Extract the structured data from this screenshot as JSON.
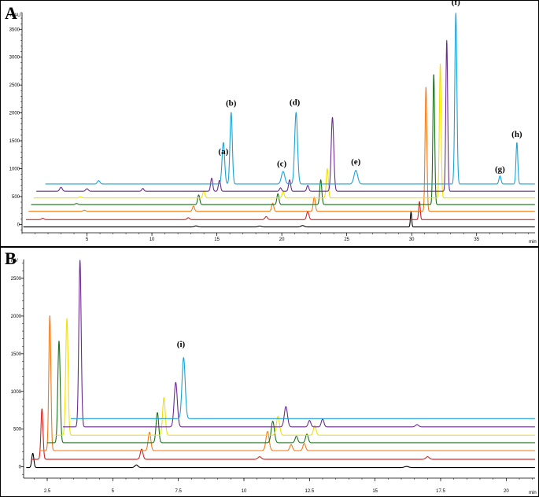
{
  "chart_data": [
    {
      "type": "line",
      "panel_label": "A",
      "y_unit": "mAU",
      "x_unit": "min",
      "xlim": [
        0,
        39.5
      ],
      "ylim": [
        -150,
        3800
      ],
      "x_ticks": [
        5,
        10,
        15,
        20,
        25,
        30,
        35
      ],
      "x_tick_labels": [
        "5",
        "10",
        "15",
        "20",
        "25",
        "30",
        "35"
      ],
      "y_ticks": [
        0,
        500,
        1000,
        1500,
        2000,
        2500,
        3000,
        3500
      ],
      "y_tick_labels": [
        "0",
        "500",
        "1000",
        "1500",
        "2000",
        "2500",
        "3000",
        "3500"
      ],
      "grid": false,
      "series": [
        {
          "color": "#000000",
          "x_start": 0.1,
          "baseline": -45,
          "peaks": [
            [
              13.4,
              18,
              0.12
            ],
            [
              18.3,
              15,
              0.12
            ],
            [
              21.6,
              25,
              0.12
            ],
            [
              29.95,
              270,
              0.05
            ]
          ]
        },
        {
          "color": "#d42020",
          "x_start": 0.3,
          "baseline": 85,
          "peaks": [
            [
              1.6,
              25,
              0.1
            ],
            [
              12.8,
              35,
              0.1
            ],
            [
              18.8,
              55,
              0.1
            ],
            [
              22.0,
              145,
              0.09
            ],
            [
              30.6,
              325,
              0.06
            ]
          ]
        },
        {
          "color": "#f07a1a",
          "x_start": 0.5,
          "baseline": 235,
          "peaks": [
            [
              4.8,
              20,
              0.1
            ],
            [
              13.2,
              95,
              0.08
            ],
            [
              19.3,
              145,
              0.08
            ],
            [
              22.5,
              255,
              0.08
            ],
            [
              31.1,
              2230,
              0.07
            ]
          ]
        },
        {
          "color": "#1c6f1c",
          "x_start": 0.7,
          "baseline": 355,
          "peaks": [
            [
              4.2,
              20,
              0.1
            ],
            [
              13.6,
              175,
              0.08
            ],
            [
              19.7,
              195,
              0.08
            ],
            [
              23.0,
              445,
              0.08
            ],
            [
              31.7,
              2345,
              0.07
            ]
          ]
        },
        {
          "color": "#f2e000",
          "x_start": 0.9,
          "baseline": 475,
          "peaks": [
            [
              4.5,
              20,
              0.1
            ],
            [
              14.0,
              125,
              0.08
            ],
            [
              20.1,
              115,
              0.08
            ],
            [
              23.5,
              525,
              0.08
            ],
            [
              32.2,
              2405,
              0.07
            ]
          ]
        },
        {
          "color": "#6a2c8e",
          "x_start": 1.1,
          "baseline": 595,
          "peaks": [
            [
              3.0,
              70,
              0.1
            ],
            [
              5.0,
              45,
              0.1
            ],
            [
              9.3,
              50,
              0.08
            ],
            [
              14.6,
              235,
              0.08
            ],
            [
              15.2,
              195,
              0.08
            ],
            [
              19.9,
              60,
              0.08
            ],
            [
              20.6,
              205,
              0.08
            ],
            [
              22.0,
              105,
              0.08
            ],
            [
              23.9,
              1325,
              0.1
            ],
            [
              32.7,
              2705,
              0.07
            ]
          ]
        },
        {
          "color": "#1ba3d6",
          "x_start": 1.8,
          "baseline": 725,
          "peaks": [
            [
              5.9,
              60,
              0.1
            ],
            [
              15.5,
              745,
              0.1
            ],
            [
              16.1,
              1285,
              0.09
            ],
            [
              20.1,
              225,
              0.13
            ],
            [
              21.1,
              1285,
              0.11
            ],
            [
              25.7,
              245,
              0.14
            ],
            [
              33.4,
              3065,
              0.08
            ],
            [
              36.8,
              145,
              0.08
            ],
            [
              38.1,
              745,
              0.07
            ]
          ]
        }
      ],
      "annotations": [
        {
          "text": "(a)",
          "x": 15.5,
          "y": 1260
        },
        {
          "text": "(b)",
          "x": 16.1,
          "y": 2130
        },
        {
          "text": "(c)",
          "x": 20.0,
          "y": 1040
        },
        {
          "text": "(d)",
          "x": 21.0,
          "y": 2140
        },
        {
          "text": "(e)",
          "x": 25.7,
          "y": 1080
        },
        {
          "text": "(f)",
          "x": 33.4,
          "y": 3940
        },
        {
          "text": "(g)",
          "x": 36.8,
          "y": 945
        },
        {
          "text": "(h)",
          "x": 38.1,
          "y": 1570
        }
      ]
    },
    {
      "type": "line",
      "panel_label": "B",
      "y_unit": "mV",
      "x_unit": "min",
      "xlim": [
        1.6,
        21.1
      ],
      "ylim": [
        -150,
        2750
      ],
      "x_ticks": [
        2.5,
        5,
        7.5,
        10,
        12.5,
        15,
        17.5,
        20
      ],
      "x_tick_labels": [
        "2.5",
        "5",
        "7.5",
        "10",
        "12.5",
        "15",
        "17.5",
        "20"
      ],
      "y_ticks": [
        0,
        500,
        1000,
        1500,
        2000,
        2500
      ],
      "y_tick_labels": [
        "0",
        "500",
        "1000",
        "1500",
        "2000",
        "2500"
      ],
      "grid": false,
      "series": [
        {
          "color": "#000000",
          "x_start": 1.7,
          "baseline": -10,
          "peaks": [
            [
              1.95,
              190,
              0.04
            ],
            [
              5.9,
              35,
              0.06
            ],
            [
              16.2,
              15,
              0.08
            ]
          ]
        },
        {
          "color": "#d42020",
          "x_start": 1.9,
          "baseline": 100,
          "peaks": [
            [
              2.3,
              670,
              0.04
            ],
            [
              6.1,
              135,
              0.05
            ],
            [
              10.6,
              35,
              0.06
            ],
            [
              17.0,
              35,
              0.06
            ]
          ]
        },
        {
          "color": "#f07a1a",
          "x_start": 2.2,
          "baseline": 215,
          "peaks": [
            [
              2.6,
              1790,
              0.04
            ],
            [
              6.4,
              245,
              0.05
            ],
            [
              10.9,
              255,
              0.06
            ],
            [
              11.8,
              80,
              0.05
            ],
            [
              12.3,
              95,
              0.05
            ]
          ]
        },
        {
          "color": "#1c6f1c",
          "x_start": 2.5,
          "baseline": 320,
          "peaks": [
            [
              2.95,
              1350,
              0.045
            ],
            [
              6.7,
              400,
              0.05
            ],
            [
              11.1,
              285,
              0.06
            ],
            [
              12.0,
              85,
              0.05
            ],
            [
              12.4,
              115,
              0.05
            ]
          ]
        },
        {
          "color": "#f2e000",
          "x_start": 2.8,
          "baseline": 420,
          "peaks": [
            [
              3.25,
              1550,
              0.045
            ],
            [
              6.95,
              500,
              0.05
            ],
            [
              11.3,
              250,
              0.06
            ],
            [
              12.7,
              130,
              0.05
            ]
          ]
        },
        {
          "color": "#6a2c8e",
          "x_start": 3.1,
          "baseline": 530,
          "peaks": [
            [
              3.75,
              2210,
              0.045
            ],
            [
              7.4,
              590,
              0.06
            ],
            [
              11.6,
              270,
              0.06
            ],
            [
              12.5,
              85,
              0.05
            ],
            [
              13.0,
              105,
              0.05
            ],
            [
              16.6,
              30,
              0.06
            ]
          ]
        },
        {
          "color": "#1ba3d6",
          "x_start": 3.4,
          "baseline": 640,
          "peaks": [
            [
              7.7,
              810,
              0.06
            ]
          ]
        }
      ],
      "annotations": [
        {
          "text": "(i)",
          "x": 7.6,
          "y": 1590
        }
      ]
    }
  ]
}
